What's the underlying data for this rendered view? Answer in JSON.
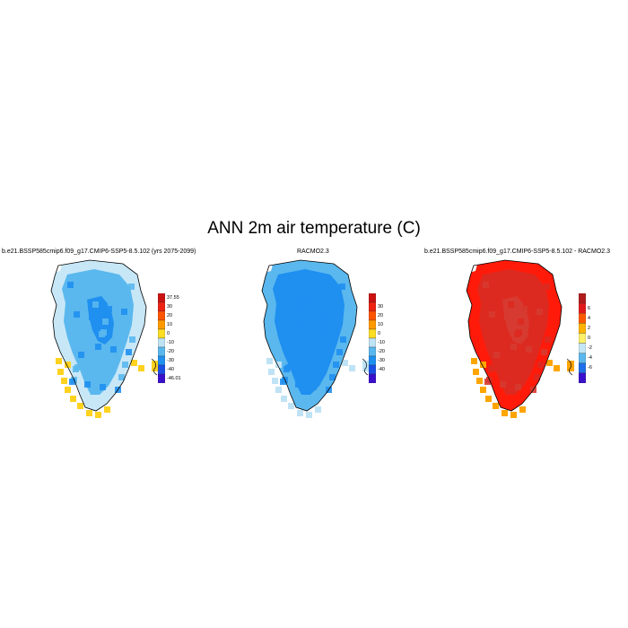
{
  "figure": {
    "title": "ANN 2m air temperature (C)"
  },
  "panels": [
    {
      "id": "model",
      "title": "b.e21.BSSP585cmip6.f09_g17.CMIP6-SSP5-8.5.102 (yrs 2075-2099)",
      "colorbar": {
        "labels": [
          "37.55",
          "30",
          "20",
          "10",
          "0",
          "-10",
          "-20",
          "-30",
          "-40",
          "-46.01"
        ],
        "colors": [
          "#cc1111",
          "#ee2211",
          "#ff5500",
          "#ff9900",
          "#ffdd22",
          "#bfe3f5",
          "#5ab8ee",
          "#1f8ff0",
          "#1a4fe6",
          "#3a10cc"
        ]
      },
      "fill_colors": {
        "outer": "#c7e7f7",
        "main": "#5ab8ee",
        "inner": "#1f8ff0",
        "coast": "#ffd21f"
      }
    },
    {
      "id": "racmo",
      "title": "RACMO2.3",
      "colorbar": {
        "labels": [
          "30",
          "20",
          "10",
          "0",
          "-10",
          "-20",
          "-30",
          "-40"
        ],
        "colors": [
          "#cc1111",
          "#ee2211",
          "#ff5500",
          "#ff9900",
          "#ffdd22",
          "#bfe3f5",
          "#5ab8ee",
          "#1f8ff0",
          "#1a4fe6",
          "#3a10cc"
        ]
      },
      "fill_colors": {
        "outer": "#5ab8ee",
        "main": "#1f8ff0",
        "inner": "#1f8ff0",
        "coast": "#bfe3f5"
      }
    },
    {
      "id": "diff",
      "title": "b.e21.BSSP585cmip6.f09_g17.CMIP6-SSP5-8.5.102 - RACMO2.3",
      "colorbar": {
        "labels": [
          "6",
          "4",
          "2",
          "0",
          "-2",
          "-4",
          "-6"
        ],
        "colors": [
          "#b01c1c",
          "#e31a1c",
          "#ff5a00",
          "#ffb300",
          "#fff06a",
          "#c4e6f5",
          "#5ab8ee",
          "#1f6fe8",
          "#3a10cc"
        ]
      },
      "fill_colors": {
        "outer": "#ff1a0a",
        "main": "#dd2a20",
        "inner": "#d63a30",
        "coast": "#ffa500"
      }
    }
  ]
}
